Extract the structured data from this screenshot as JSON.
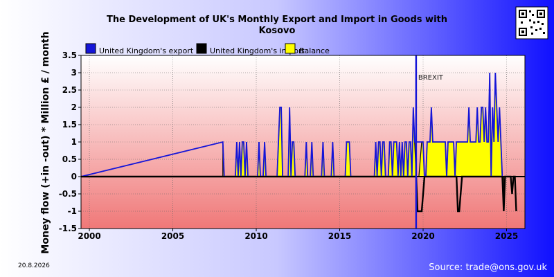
{
  "chart_data": {
    "type": "area",
    "title_line1": "The Development of UK's Monthly Export and Import in Goods with",
    "title_line2": "Kosovo",
    "ylabel": "Money flow (+in -out) * Million £ / month",
    "xlim": [
      1999.5,
      2026.1
    ],
    "ylim": [
      -1.5,
      3.5
    ],
    "xticks": [
      2000,
      2005,
      2010,
      2015,
      2020,
      2025
    ],
    "xtick_labels": [
      "2000",
      "2005",
      "2010",
      "2015",
      "2020",
      "2025"
    ],
    "yticks": [
      -1.5,
      -1,
      -0.5,
      0,
      0.5,
      1,
      1.5,
      2,
      2.5,
      3,
      3.5
    ],
    "ytick_labels": [
      "-1.5",
      "-1",
      "-0.5",
      "0",
      "0.5",
      "1",
      "1.5",
      "2",
      "2.5",
      "3",
      "3.5"
    ],
    "legend": [
      {
        "label": "United Kingdom's export",
        "color": "#1515d8"
      },
      {
        "label": "United Kingdom's import",
        "color": "#000000"
      },
      {
        "label": "Balance",
        "color": "#ffff00"
      }
    ],
    "annotation": {
      "label": "BREXIT",
      "x": 2019.58
    },
    "series": [
      {
        "name": "United Kingdom's export",
        "x_start": 2008.0,
        "step": 0.0833,
        "values": [
          1,
          0,
          0,
          0,
          0,
          0,
          0,
          0,
          0,
          0,
          1,
          0,
          1,
          0,
          1,
          1,
          0,
          1,
          0,
          0,
          0,
          0,
          0,
          0,
          0,
          0,
          1,
          0,
          0,
          0,
          1,
          0,
          0,
          0,
          0,
          0,
          0,
          0,
          0,
          0,
          1,
          2,
          2,
          0,
          0,
          0,
          0,
          0,
          2,
          0,
          1,
          1,
          0,
          0,
          0,
          0,
          0,
          0,
          0,
          0,
          1,
          0,
          0,
          0,
          1,
          0,
          0,
          0,
          0,
          0,
          0,
          0,
          1,
          0,
          0,
          0,
          0,
          0,
          0,
          1,
          0,
          0,
          0,
          0,
          0,
          0,
          0,
          0,
          0,
          1,
          1,
          1,
          0,
          0,
          0,
          0,
          0,
          0,
          0,
          0,
          0,
          0,
          0,
          0,
          0,
          0,
          0,
          0,
          0,
          0,
          1,
          0,
          1,
          1,
          0,
          1,
          1,
          0,
          0,
          0,
          1,
          1,
          0,
          1,
          1,
          1,
          0,
          1,
          0,
          1,
          0,
          1,
          1,
          0,
          1,
          1,
          0,
          2,
          1,
          1,
          1,
          1,
          1,
          1,
          1,
          0,
          0,
          1,
          1,
          1,
          2,
          1,
          1,
          1,
          1,
          1,
          1,
          1,
          1,
          1,
          1,
          0,
          1,
          1,
          1,
          1,
          1,
          0,
          1,
          1,
          1,
          1,
          1,
          1,
          1,
          1,
          1,
          2,
          1,
          1,
          1,
          1,
          1,
          2,
          1,
          1,
          2,
          2,
          1,
          2,
          1,
          1,
          3,
          0,
          2,
          1,
          3,
          2,
          1,
          2,
          1,
          0,
          0
        ]
      },
      {
        "name": "United Kingdom's import",
        "x_start": 2019.5,
        "step": 0.0833,
        "values": [
          0,
          0,
          -1,
          -1,
          -1,
          -1,
          -0.5,
          0,
          0,
          0,
          0,
          0,
          0,
          0,
          0,
          0,
          0,
          0,
          0,
          0,
          0,
          0,
          0,
          0,
          0,
          0,
          0,
          0,
          0,
          0,
          0,
          -1,
          -1,
          -0.5,
          0,
          0,
          0,
          0,
          0,
          0,
          0,
          0,
          0,
          0,
          0,
          0,
          0,
          0,
          0,
          0,
          0,
          0,
          0,
          0,
          0,
          0,
          0,
          0,
          0,
          0,
          0,
          0,
          0,
          0,
          -1,
          0,
          0,
          0,
          0,
          0,
          -0.5,
          0,
          0,
          -1
        ]
      },
      {
        "name": "Balance",
        "x_start": 2008.0,
        "step": 0.0833,
        "values": [
          1,
          0,
          0,
          0,
          0,
          0,
          0,
          0,
          0,
          0,
          1,
          0,
          1,
          0,
          1,
          1,
          0,
          1,
          0,
          0,
          0,
          0,
          0,
          0,
          0,
          0,
          1,
          0,
          0,
          0,
          1,
          0,
          0,
          0,
          0,
          0,
          0,
          0,
          0,
          0,
          1,
          2,
          2,
          0,
          0,
          0,
          0,
          0,
          2,
          0,
          1,
          1,
          0,
          0,
          0,
          0,
          0,
          0,
          0,
          0,
          1,
          0,
          0,
          0,
          1,
          0,
          0,
          0,
          0,
          0,
          0,
          0,
          1,
          0,
          0,
          0,
          0,
          0,
          0,
          1,
          0,
          0,
          0,
          0,
          0,
          0,
          0,
          0,
          0,
          1,
          1,
          1,
          0,
          0,
          0,
          0,
          0,
          0,
          0,
          0,
          0,
          0,
          0,
          0,
          0,
          0,
          0,
          0,
          0,
          0,
          1,
          0,
          1,
          1,
          0,
          1,
          1,
          0,
          0,
          0,
          1,
          1,
          0,
          1,
          1,
          1,
          0,
          1,
          0,
          1,
          0,
          1,
          1,
          0,
          1,
          1,
          0,
          2,
          1,
          0,
          0,
          0,
          0.5,
          1,
          1,
          0,
          0,
          1,
          1,
          1,
          2,
          1,
          1,
          1,
          1,
          1,
          1,
          1,
          1,
          1,
          1,
          0,
          1,
          1,
          1,
          1,
          1,
          0,
          1,
          1,
          1,
          1,
          1,
          1,
          1,
          1,
          1,
          2,
          1,
          1,
          1,
          1,
          1,
          2,
          1,
          1,
          2,
          2,
          1,
          2,
          1,
          1,
          3,
          0,
          2,
          1,
          3,
          2,
          1,
          2,
          1,
          0,
          -1
        ]
      }
    ]
  },
  "footer": {
    "date": "20.8.2026",
    "source": "Source: trade@ons.gov.uk"
  },
  "qr": {
    "icon": "qr-code-icon"
  }
}
